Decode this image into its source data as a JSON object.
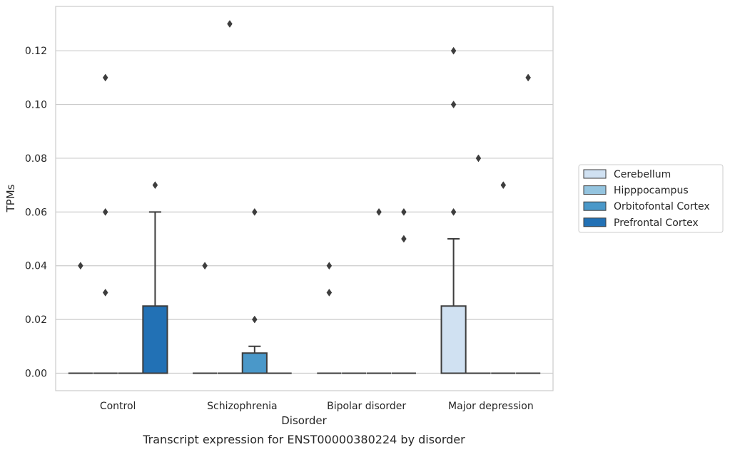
{
  "chart_data": {
    "type": "box",
    "title": "",
    "caption": "Transcript expression for ENST00000380224 by disorder",
    "xlabel": "Disorder",
    "ylabel": "TPMs",
    "ylim": [
      -0.0065,
      0.1365
    ],
    "yticks": [
      "0.00",
      "0.02",
      "0.04",
      "0.06",
      "0.08",
      "0.10",
      "0.12"
    ],
    "ytick_values": [
      0,
      0.02,
      0.04,
      0.06,
      0.08,
      0.1,
      0.12
    ],
    "categories": [
      "Control",
      "Schizophrenia",
      "Bipolar disorder",
      "Major depression"
    ],
    "grid": "horizontal",
    "legend_position": "right",
    "series": [
      {
        "name": "Cerebellum",
        "color": "#d0e1f2",
        "boxes": [
          {
            "min": 0,
            "q1": 0,
            "median": 0,
            "q3": 0,
            "max": 0,
            "outliers": [
              0.04
            ]
          },
          {
            "min": 0,
            "q1": 0,
            "median": 0,
            "q3": 0,
            "max": 0,
            "outliers": [
              0.04
            ]
          },
          {
            "min": 0,
            "q1": 0,
            "median": 0,
            "q3": 0,
            "max": 0,
            "outliers": [
              0.04,
              0.03
            ]
          },
          {
            "min": 0,
            "q1": 0,
            "median": 0,
            "q3": 0.025,
            "max": 0.05,
            "outliers": [
              0.12,
              0.1,
              0.06
            ]
          }
        ]
      },
      {
        "name": "Hipppocampus",
        "color": "#94c4df",
        "boxes": [
          {
            "min": 0,
            "q1": 0,
            "median": 0,
            "q3": 0,
            "max": 0,
            "outliers": [
              0.11,
              0.06,
              0.03
            ]
          },
          {
            "min": 0,
            "q1": 0,
            "median": 0,
            "q3": 0,
            "max": 0,
            "outliers": [
              0.13
            ]
          },
          {
            "min": 0,
            "q1": 0,
            "median": 0,
            "q3": 0,
            "max": 0,
            "outliers": []
          },
          {
            "min": 0,
            "q1": 0,
            "median": 0,
            "q3": 0,
            "max": 0,
            "outliers": [
              0.08
            ]
          }
        ]
      },
      {
        "name": "Orbitofontal Cortex",
        "color": "#4a98c9",
        "boxes": [
          {
            "min": 0,
            "q1": 0,
            "median": 0,
            "q3": 0,
            "max": 0,
            "outliers": []
          },
          {
            "min": 0,
            "q1": 0,
            "median": 0,
            "q3": 0.0075,
            "max": 0.01,
            "outliers": [
              0.06,
              0.02
            ]
          },
          {
            "min": 0,
            "q1": 0,
            "median": 0,
            "q3": 0,
            "max": 0,
            "outliers": [
              0.06
            ]
          },
          {
            "min": 0,
            "q1": 0,
            "median": 0,
            "q3": 0,
            "max": 0,
            "outliers": [
              0.07
            ]
          }
        ]
      },
      {
        "name": "Prefrontal Cortex",
        "color": "#2271b5",
        "boxes": [
          {
            "min": 0,
            "q1": 0,
            "median": 0,
            "q3": 0.025,
            "max": 0.06,
            "outliers": [
              0.07
            ]
          },
          {
            "min": 0,
            "q1": 0,
            "median": 0,
            "q3": 0,
            "max": 0,
            "outliers": []
          },
          {
            "min": 0,
            "q1": 0,
            "median": 0,
            "q3": 0,
            "max": 0,
            "outliers": [
              0.06,
              0.05
            ]
          },
          {
            "min": 0,
            "q1": 0,
            "median": 0,
            "q3": 0,
            "max": 0,
            "outliers": [
              0.11
            ]
          }
        ]
      }
    ]
  }
}
